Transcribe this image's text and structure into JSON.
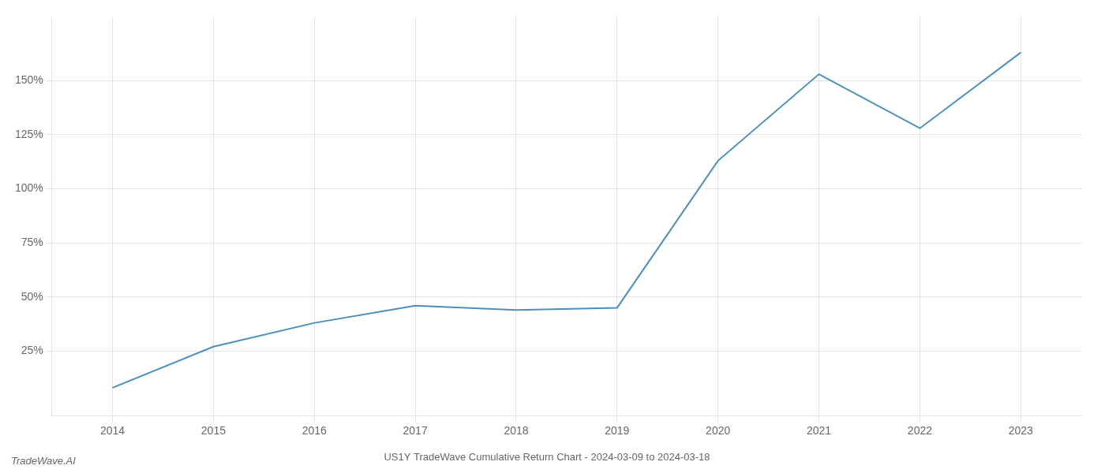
{
  "chart_data": {
    "type": "line",
    "title": "US1Y TradeWave Cumulative Return Chart - 2024-03-09 to 2024-03-18",
    "annotations": [
      "TradeWave.AI"
    ],
    "x": [
      2014,
      2015,
      2016,
      2017,
      2018,
      2019,
      2020,
      2021,
      2022,
      2023
    ],
    "values": [
      8,
      27,
      38,
      46,
      44,
      45,
      113,
      153,
      128,
      163
    ],
    "color": "#4a8fbd",
    "xlim": [
      2013.4,
      2023.6
    ],
    "xticks": [
      2014,
      2015,
      2016,
      2017,
      2018,
      2019,
      2020,
      2021,
      2022,
      2023
    ],
    "ylim": [
      -5,
      180
    ],
    "yticks": [
      {
        "value": 25,
        "label": "25%"
      },
      {
        "value": 50,
        "label": "50%"
      },
      {
        "value": 75,
        "label": "75%"
      },
      {
        "value": 100,
        "label": "100%"
      },
      {
        "value": 125,
        "label": "125%"
      },
      {
        "value": 150,
        "label": "150%"
      }
    ],
    "grid": true
  }
}
